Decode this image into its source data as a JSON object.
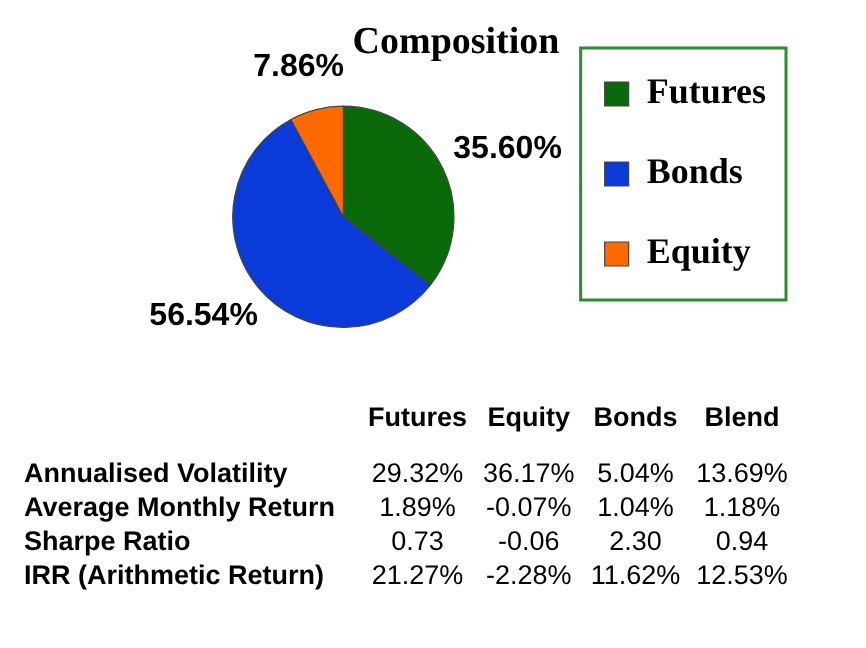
{
  "chart_data": [
    {
      "type": "pie",
      "title": "Composition",
      "categories": [
        "Futures",
        "Bonds",
        "Equity"
      ],
      "values": [
        35.6,
        56.54,
        7.86
      ],
      "colors": [
        "#0a6a0a",
        "#0a3ad8",
        "#ff6a00"
      ],
      "value_labels": [
        "35.60%",
        "56.54%",
        "7.86%"
      ],
      "legend": "right"
    },
    {
      "type": "other",
      "categories": [
        "Futures",
        "Equity",
        "Bonds",
        "Blend"
      ],
      "y_categories": [
        "Annualised Volatility",
        "Average Monthly Return",
        "Sharpe Ratio",
        "IRR (Arithmetic Return)"
      ],
      "cell_labels": [
        [
          "29.32%",
          "36.17%",
          "5.04%",
          "13.69%"
        ],
        [
          "1.89%",
          "-0.07%",
          "1.04%",
          "1.18%"
        ],
        [
          "0.73",
          "-0.06",
          "2.30",
          "0.94"
        ],
        [
          "21.27%",
          "-2.28%",
          "11.62%",
          "12.53%"
        ]
      ]
    }
  ]
}
